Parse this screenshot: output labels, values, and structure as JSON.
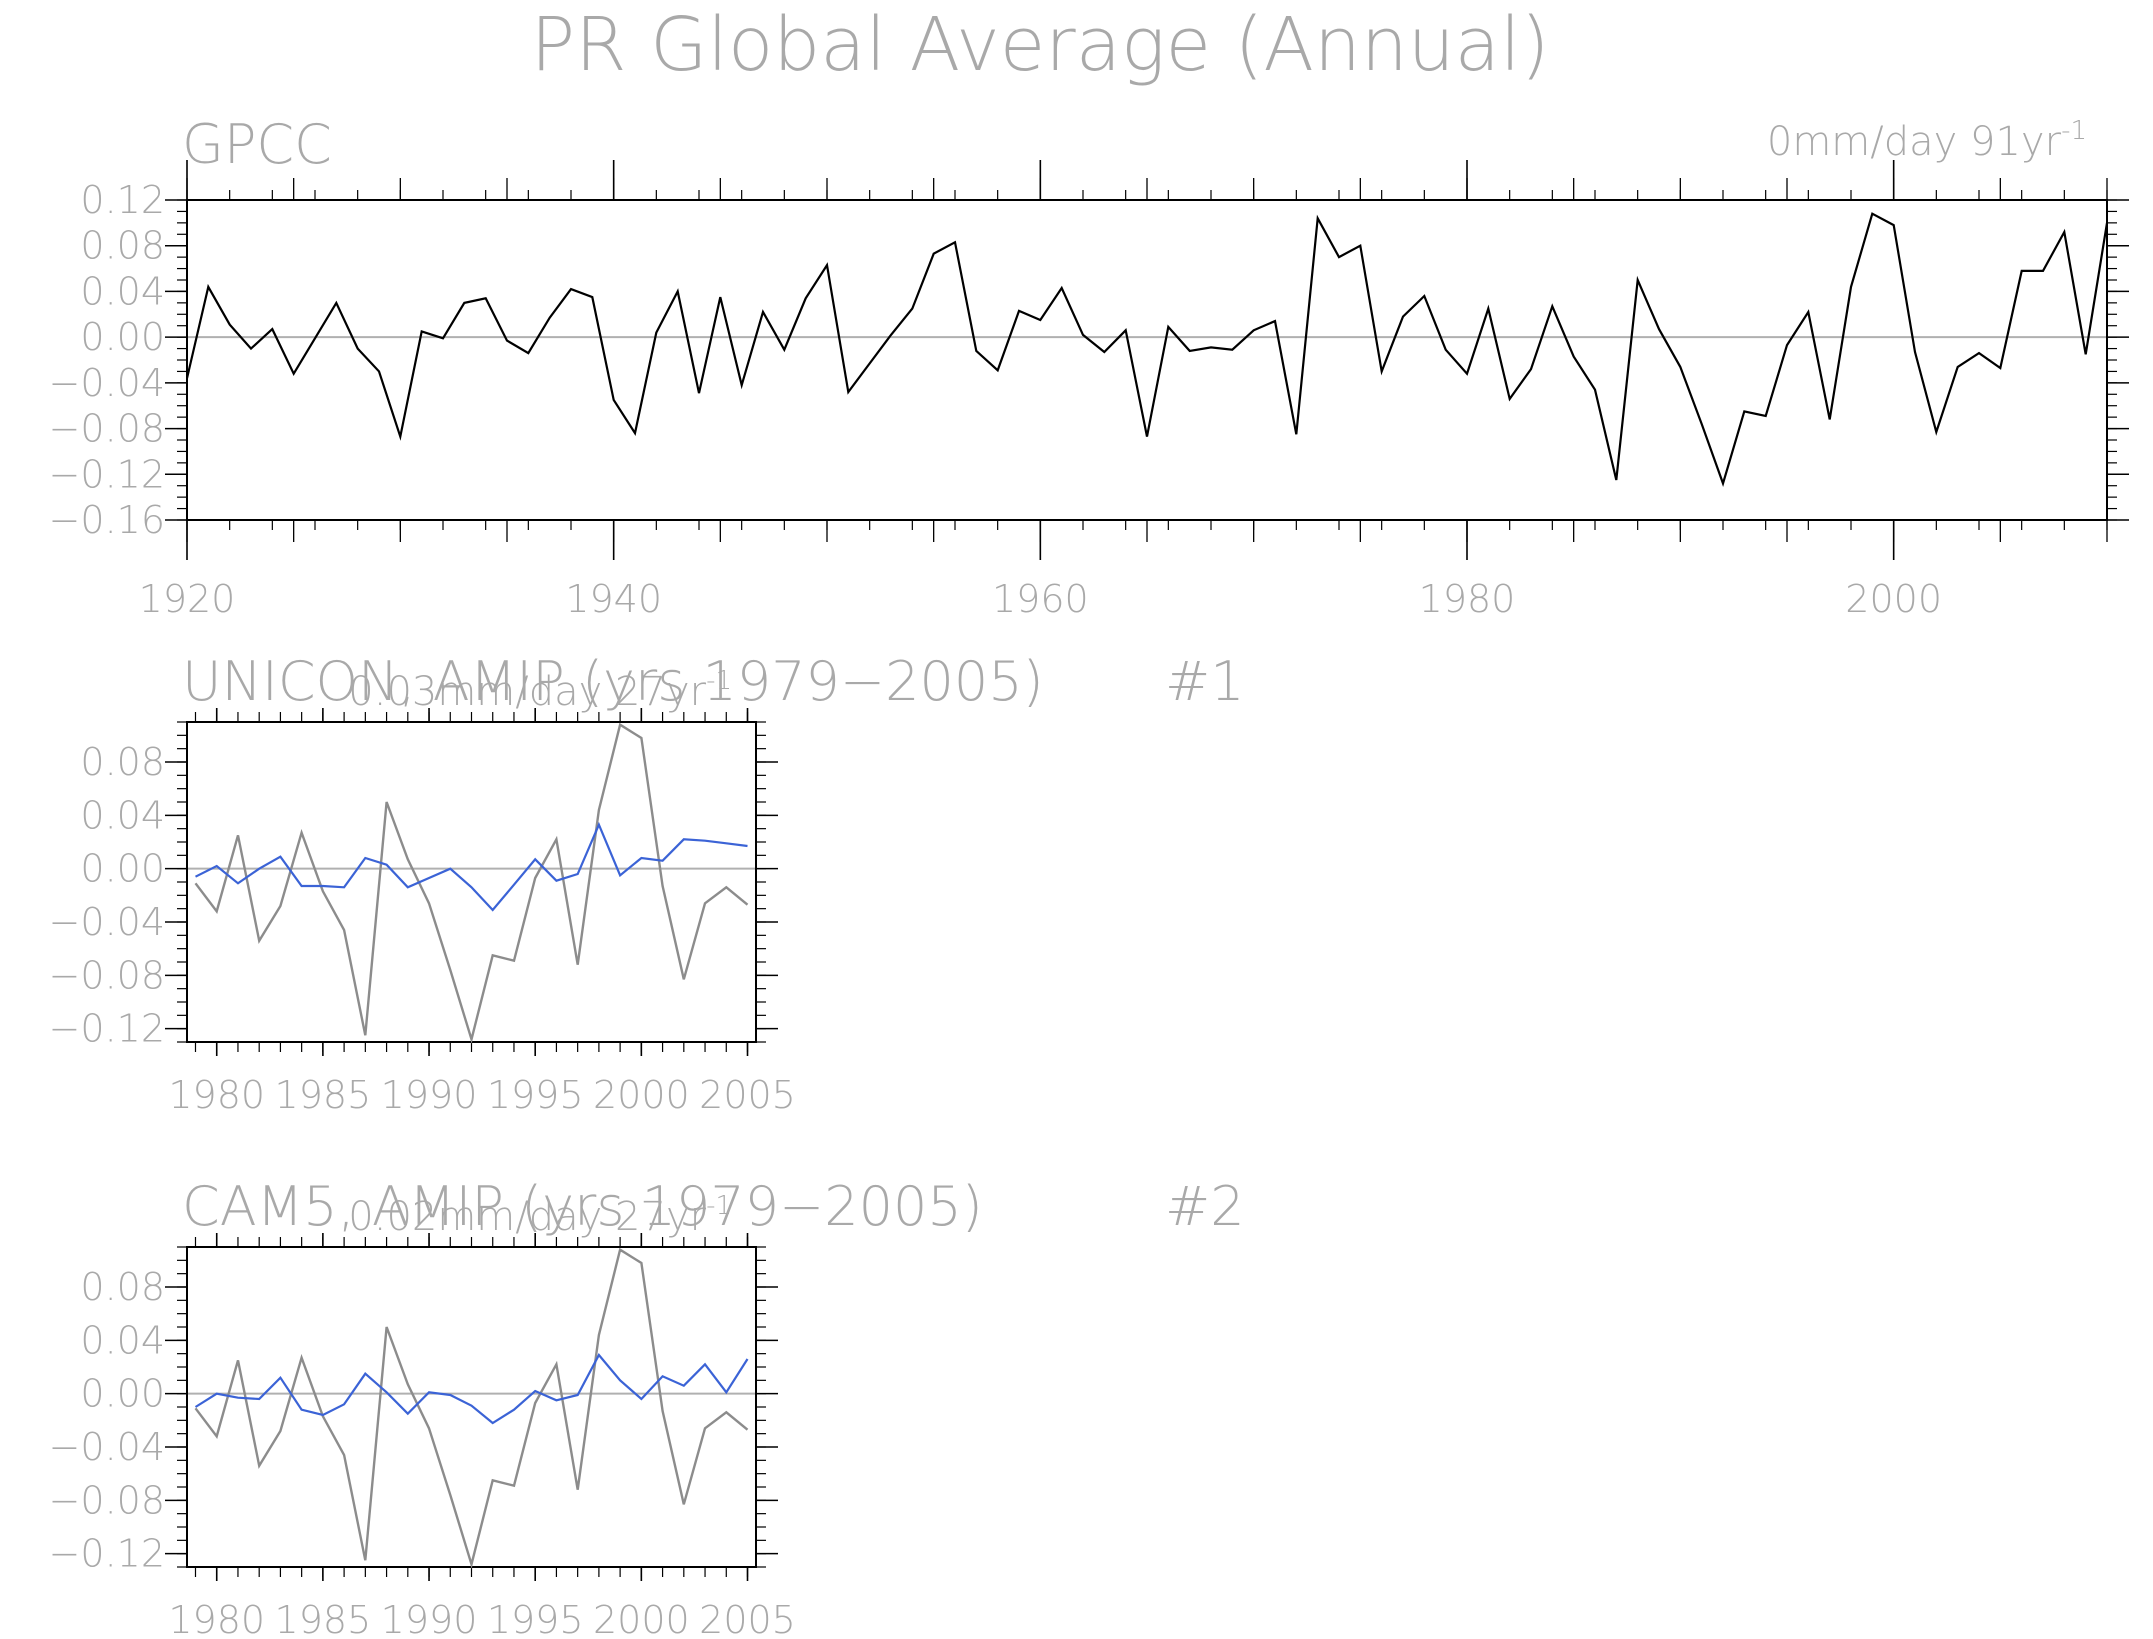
{
  "title": "PR Global Average (Annual)",
  "colors": {
    "text": "#a9a9a9",
    "axis": "#000000",
    "obs_line": "#000000",
    "obs_ref_line": "#8c8c8c",
    "model_line": "#3b63d6",
    "zero_line": "#b0b0b0"
  },
  "chart_data": [
    {
      "type": "line",
      "name": "GPCC",
      "title": "GPCC",
      "trend_text": "0mm/day 91yr",
      "trend_exp": "-1",
      "xlim": [
        1920,
        2010
      ],
      "ylim": [
        -0.16,
        0.12
      ],
      "xticks": [
        1920,
        1940,
        1960,
        1980,
        2000
      ],
      "xtick_labels": [
        "1920",
        "1940",
        "1960",
        "1980",
        "2000"
      ],
      "yticks": [
        0.12,
        0.08,
        0.04,
        0.0,
        -0.04,
        -0.08,
        -0.12,
        -0.16
      ],
      "ytick_labels": [
        "0.12",
        "0.08",
        "0.04",
        "0.00",
        "−0.04",
        "−0.08",
        "−0.12",
        "−0.16"
      ],
      "zero_line": true,
      "series": [
        {
          "x": [
            1920,
            1921,
            1922,
            1923,
            1924,
            1925,
            1926,
            1927,
            1928,
            1929,
            1930,
            1931,
            1932,
            1933,
            1934,
            1935,
            1936,
            1937,
            1938,
            1939,
            1940,
            1941,
            1942,
            1943,
            1944,
            1945,
            1946,
            1947,
            1948,
            1949,
            1950,
            1951,
            1952,
            1953,
            1954,
            1955,
            1956,
            1957,
            1958,
            1959,
            1960,
            1961,
            1962,
            1963,
            1964,
            1965,
            1966,
            1967,
            1968,
            1969,
            1970,
            1971,
            1972,
            1973,
            1974,
            1975,
            1976,
            1977,
            1978,
            1979,
            1980,
            1981,
            1982,
            1983,
            1984,
            1985,
            1986,
            1987,
            1988,
            1989,
            1990,
            1991,
            1992,
            1993,
            1994,
            1995,
            1996,
            1997,
            1998,
            1999,
            2000,
            2001,
            2002,
            2003,
            2004,
            2005,
            2006,
            2007,
            2008,
            2009,
            2010
          ],
          "y": [
            -0.036,
            0.044,
            0.011,
            -0.01,
            0.007,
            -0.032,
            -0.001,
            0.03,
            -0.01,
            -0.03,
            -0.087,
            0.005,
            -0.001,
            0.03,
            0.034,
            -0.003,
            -0.014,
            0.017,
            0.042,
            0.035,
            -0.055,
            -0.084,
            0.004,
            0.04,
            -0.049,
            0.035,
            -0.042,
            0.022,
            -0.011,
            0.034,
            0.063,
            -0.048,
            -0.023,
            0.002,
            0.025,
            0.073,
            0.083,
            -0.012,
            -0.029,
            0.023,
            0.015,
            0.043,
            0.002,
            -0.013,
            0.006,
            -0.087,
            0.009,
            -0.012,
            -0.009,
            -0.011,
            0.006,
            0.014,
            -0.085,
            0.104,
            0.07,
            0.08,
            -0.03,
            0.018,
            0.036,
            -0.011,
            -0.032,
            0.025,
            -0.054,
            -0.028,
            0.027,
            -0.017,
            -0.046,
            -0.125,
            0.05,
            0.007,
            -0.026,
            -0.076,
            -0.128,
            -0.065,
            -0.069,
            -0.007,
            0.022,
            -0.072,
            0.044,
            0.108,
            0.098,
            -0.013,
            -0.083,
            -0.026,
            -0.014,
            -0.027,
            0.058,
            0.058,
            0.092,
            -0.015,
            0.1
          ]
        }
      ]
    },
    {
      "type": "line",
      "name": "UNICON, AMIP (yrs 1979-2005)",
      "title": "UNICON, AMIP (yrs 1979−2005)",
      "trend_text": "0.03mm/day 27yr",
      "trend_exp": "-1",
      "panel_tag": "#1",
      "xlim": [
        1978.6,
        2005.4
      ],
      "ylim": [
        -0.13,
        0.11
      ],
      "xticks": [
        1980,
        1985,
        1990,
        1995,
        2000,
        2005
      ],
      "xtick_labels": [
        "1980",
        "1985",
        "1990",
        "1995",
        "2000",
        "2005"
      ],
      "yticks": [
        0.08,
        0.04,
        0.0,
        -0.04,
        -0.08,
        -0.12
      ],
      "ytick_labels": [
        "0.08",
        "0.04",
        "0.00",
        "−0.04",
        "−0.08",
        "−0.12"
      ],
      "zero_line": true,
      "series": [
        {
          "role": "observed",
          "x": [
            1979,
            1980,
            1981,
            1982,
            1983,
            1984,
            1985,
            1986,
            1987,
            1988,
            1989,
            1990,
            1991,
            1992,
            1993,
            1994,
            1995,
            1996,
            1997,
            1998,
            1999,
            2000,
            2001,
            2002,
            2003,
            2004,
            2005
          ],
          "y": [
            -0.011,
            -0.032,
            0.025,
            -0.054,
            -0.028,
            0.027,
            -0.017,
            -0.046,
            -0.125,
            0.05,
            0.007,
            -0.026,
            -0.076,
            -0.128,
            -0.065,
            -0.069,
            -0.007,
            0.022,
            -0.072,
            0.044,
            0.108,
            0.098,
            -0.013,
            -0.083,
            -0.026,
            -0.014,
            -0.027
          ]
        },
        {
          "role": "model",
          "x": [
            1979,
            1980,
            1981,
            1982,
            1983,
            1984,
            1985,
            1986,
            1987,
            1988,
            1989,
            1990,
            1991,
            1992,
            1993,
            1994,
            1995,
            1996,
            1997,
            1998,
            1999,
            2000,
            2001,
            2002,
            2003,
            2004,
            2005
          ],
          "y": [
            -0.006,
            0.002,
            -0.011,
            0.0,
            0.009,
            -0.013,
            -0.013,
            -0.014,
            0.008,
            0.003,
            -0.014,
            -0.007,
            0.0,
            -0.014,
            -0.031,
            -0.012,
            0.007,
            -0.009,
            -0.004,
            0.033,
            -0.005,
            0.008,
            0.006,
            0.022,
            0.021,
            0.019,
            0.017
          ]
        }
      ]
    },
    {
      "type": "line",
      "name": "CAM5, AMIP (yrs 1979-2005)",
      "title": "CAM5, AMIP (yrs 1979−2005)",
      "trend_text": "0.02mm/day 27yr",
      "trend_exp": "-1",
      "panel_tag": "#2",
      "xlim": [
        1978.6,
        2005.4
      ],
      "ylim": [
        -0.13,
        0.11
      ],
      "xticks": [
        1980,
        1985,
        1990,
        1995,
        2000,
        2005
      ],
      "xtick_labels": [
        "1980",
        "1985",
        "1990",
        "1995",
        "2000",
        "2005"
      ],
      "yticks": [
        0.08,
        0.04,
        0.0,
        -0.04,
        -0.08,
        -0.12
      ],
      "ytick_labels": [
        "0.08",
        "0.04",
        "0.00",
        "−0.04",
        "−0.08",
        "−0.12"
      ],
      "zero_line": true,
      "series": [
        {
          "role": "observed",
          "x": [
            1979,
            1980,
            1981,
            1982,
            1983,
            1984,
            1985,
            1986,
            1987,
            1988,
            1989,
            1990,
            1991,
            1992,
            1993,
            1994,
            1995,
            1996,
            1997,
            1998,
            1999,
            2000,
            2001,
            2002,
            2003,
            2004,
            2005
          ],
          "y": [
            -0.011,
            -0.032,
            0.025,
            -0.054,
            -0.028,
            0.027,
            -0.017,
            -0.046,
            -0.125,
            0.05,
            0.007,
            -0.026,
            -0.076,
            -0.128,
            -0.065,
            -0.069,
            -0.007,
            0.022,
            -0.072,
            0.044,
            0.108,
            0.098,
            -0.013,
            -0.083,
            -0.026,
            -0.014,
            -0.027
          ]
        },
        {
          "role": "model",
          "x": [
            1979,
            1980,
            1981,
            1982,
            1983,
            1984,
            1985,
            1986,
            1987,
            1988,
            1989,
            1990,
            1991,
            1992,
            1993,
            1994,
            1995,
            1996,
            1997,
            1998,
            1999,
            2000,
            2001,
            2002,
            2003,
            2004,
            2005
          ],
          "y": [
            -0.01,
            0.0,
            -0.003,
            -0.004,
            0.012,
            -0.012,
            -0.016,
            -0.008,
            0.015,
            0.001,
            -0.015,
            0.001,
            -0.001,
            -0.009,
            -0.022,
            -0.012,
            0.002,
            -0.005,
            -0.001,
            0.029,
            0.01,
            -0.004,
            0.013,
            0.006,
            0.022,
            0.001,
            0.026
          ]
        }
      ]
    }
  ]
}
